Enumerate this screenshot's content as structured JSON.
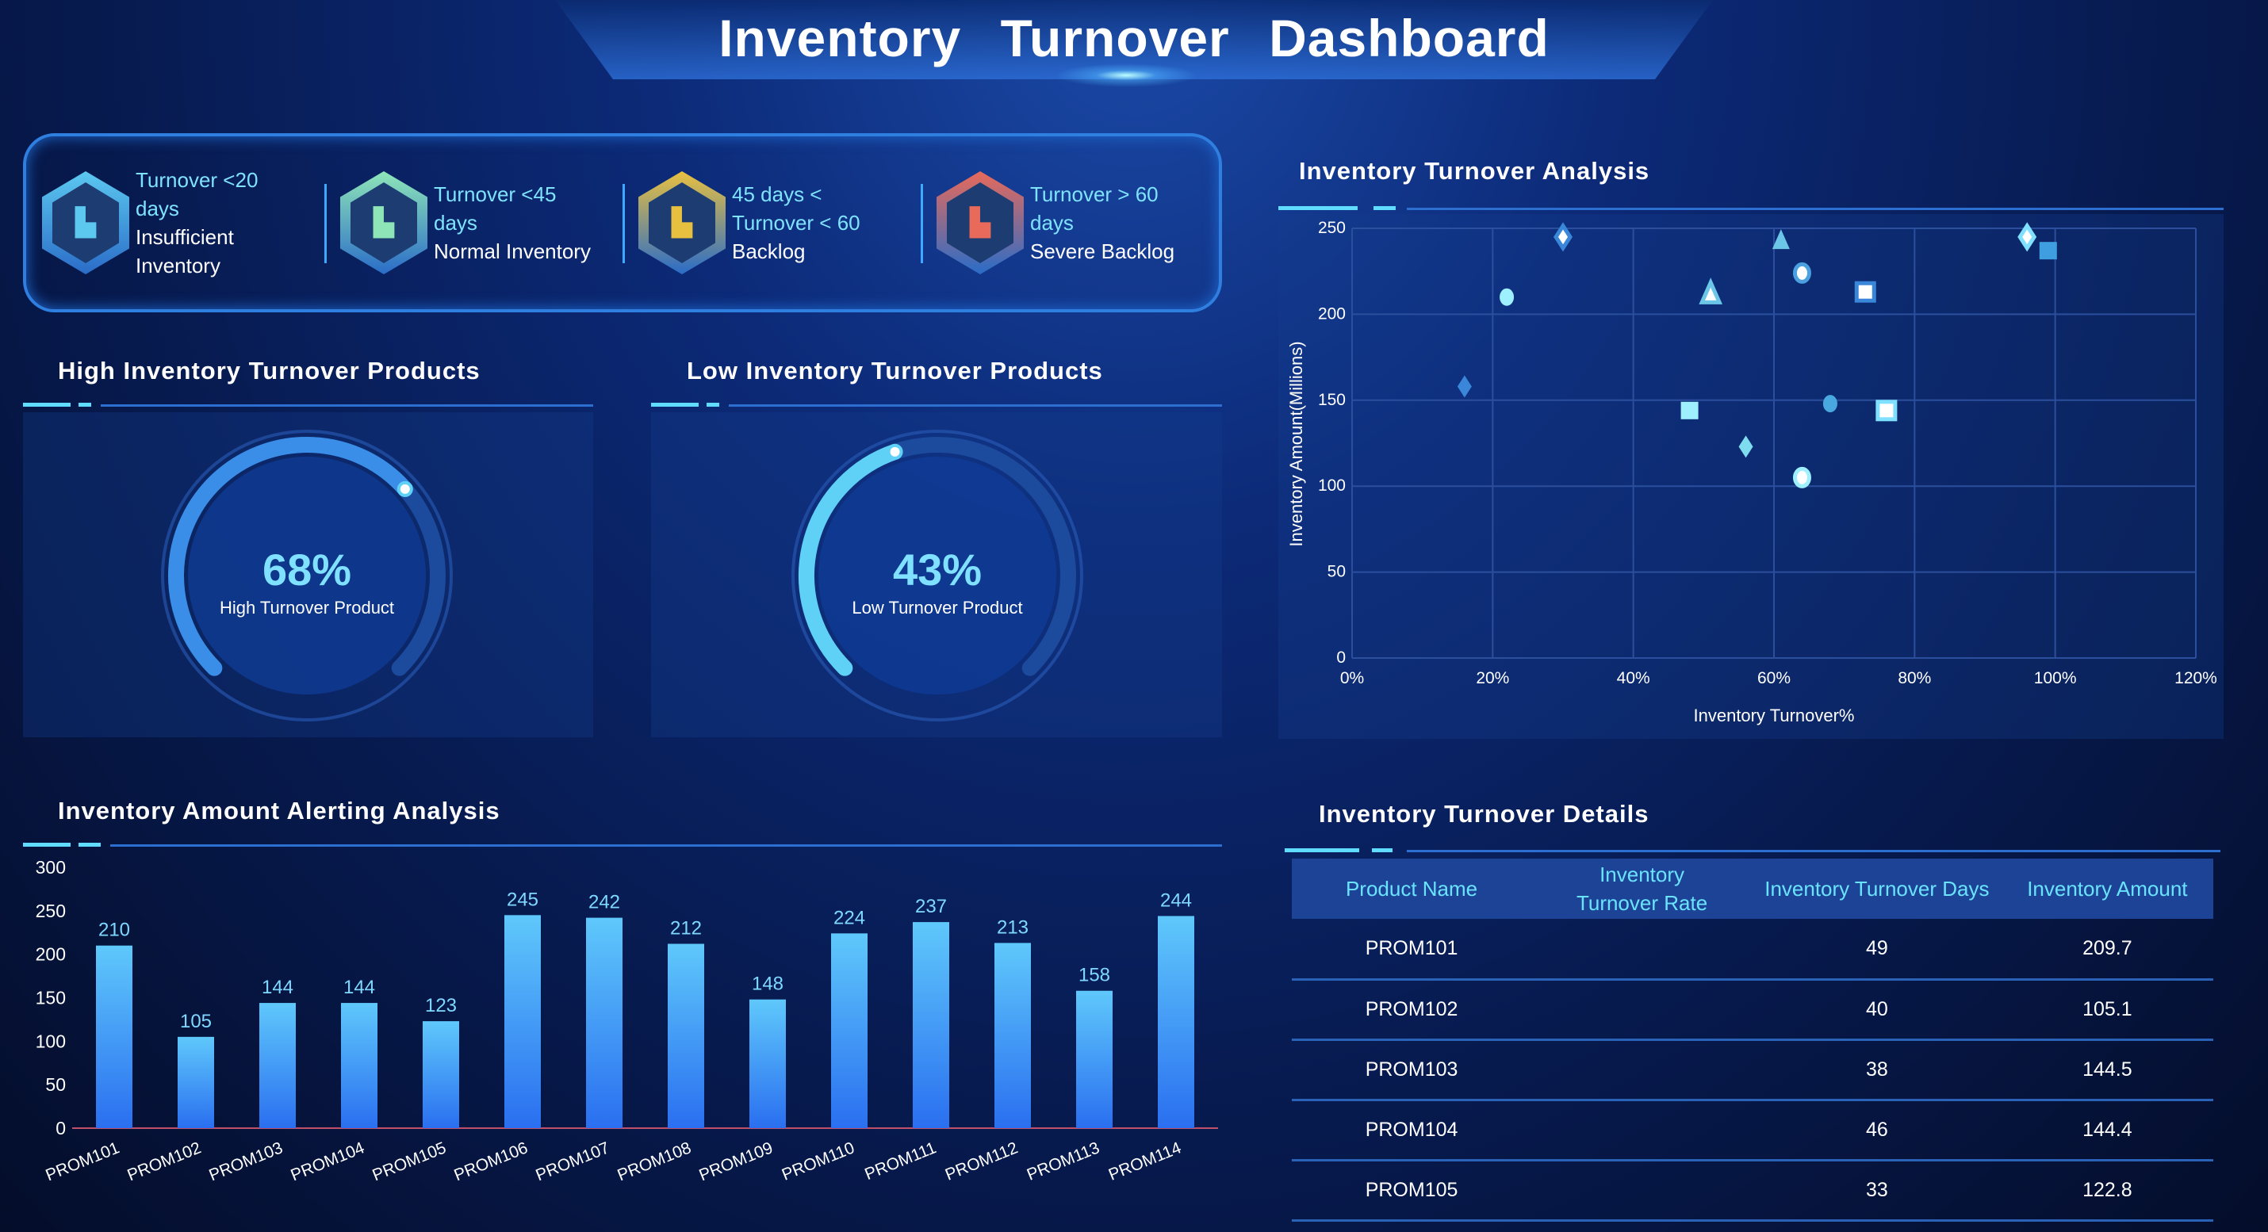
{
  "header": {
    "title": "Inventory Turnover Dashboard"
  },
  "kpis": [
    {
      "line1": "Turnover <20 days",
      "line2": "Insufficient Inventory",
      "color": "#5cc8f0",
      "icon": "bar-chart-icon"
    },
    {
      "line1": "Turnover <45 days",
      "line2": "Normal Inventory",
      "color": "#8ee6b8",
      "icon": "bar-chart-icon"
    },
    {
      "line1": "45 days < Turnover < 60",
      "line2": "Backlog",
      "color": "#e8c040",
      "icon": "bar-chart-icon"
    },
    {
      "line1": "Turnover > 60 days",
      "line2": "Severe Backlog",
      "color": "#e86a5a",
      "icon": "bar-chart-icon"
    }
  ],
  "high": {
    "title": "High Inventory Turnover Products",
    "value": "68%",
    "label": "High Turnover Product",
    "percent": 68
  },
  "low": {
    "title": "Low Inventory Turnover Products",
    "value": "43%",
    "label": "Low Turnover Product",
    "percent": 43
  },
  "chart_data": [
    {
      "type": "scatter",
      "title": "Inventory Turnover Analysis",
      "xlabel": "Inventory Turnover%",
      "ylabel": "Inventory Amount(Millions)",
      "xlim": [
        0,
        120
      ],
      "ylim": [
        0,
        250
      ],
      "xticks": [
        "0%",
        "20%",
        "40%",
        "60%",
        "80%",
        "100%",
        "120%"
      ],
      "yticks": [
        "0",
        "50",
        "100",
        "150",
        "200",
        "250"
      ],
      "grid": true,
      "points": [
        {
          "x": 30,
          "y": 245,
          "shape": "diamond",
          "style": "outlined",
          "color": "#3a86d8"
        },
        {
          "x": 61,
          "y": 243,
          "shape": "triangle",
          "style": "filled",
          "color": "#6cc6e8"
        },
        {
          "x": 64,
          "y": 224,
          "shape": "circle",
          "style": "outlined",
          "color": "#4aa0e0"
        },
        {
          "x": 22,
          "y": 210,
          "shape": "circle",
          "style": "filled",
          "color": "#9ff0ff"
        },
        {
          "x": 51,
          "y": 212,
          "shape": "triangle",
          "style": "outlined",
          "color": "#6cc6e8"
        },
        {
          "x": 73,
          "y": 213,
          "shape": "square",
          "style": "outlined",
          "color": "#3a86d8"
        },
        {
          "x": 96,
          "y": 245,
          "shape": "diamond",
          "style": "outlined",
          "color": "#7fe0ff"
        },
        {
          "x": 99,
          "y": 237,
          "shape": "square",
          "style": "filled",
          "color": "#3f9ee0"
        },
        {
          "x": 16,
          "y": 158,
          "shape": "diamond",
          "style": "filled",
          "color": "#3a86d8"
        },
        {
          "x": 48,
          "y": 144,
          "shape": "square",
          "style": "filled",
          "color": "#9ff0ff"
        },
        {
          "x": 68,
          "y": 148,
          "shape": "circle",
          "style": "filled",
          "color": "#4aa8e0"
        },
        {
          "x": 76,
          "y": 144,
          "shape": "square",
          "style": "outlined",
          "color": "#7fe0ff"
        },
        {
          "x": 56,
          "y": 123,
          "shape": "diamond",
          "style": "filled",
          "color": "#7fdcee"
        },
        {
          "x": 64,
          "y": 105,
          "shape": "circle",
          "style": "outlined",
          "color": "#9ff0ff"
        }
      ]
    },
    {
      "type": "bar",
      "title": "Inventory Amount  Alerting Analysis",
      "ylim": [
        0,
        300
      ],
      "yticks": [
        "0",
        "50",
        "100",
        "150",
        "200",
        "250",
        "300"
      ],
      "categories": [
        "PROM101",
        "PROM102",
        "PROM103",
        "PROM104",
        "PROM105",
        "PROM106",
        "PROM107",
        "PROM108",
        "PROM109",
        "PROM110",
        "PROM111",
        "PROM112",
        "PROM113",
        "PROM114"
      ],
      "values": [
        210,
        105,
        144,
        144,
        123,
        245,
        242,
        212,
        148,
        224,
        237,
        213,
        158,
        244
      ]
    }
  ],
  "table": {
    "title": "Inventory Turnover Details",
    "columns": [
      "Product Name",
      "Inventory Turnover Rate",
      "Inventory Turnover Days",
      "Inventory Amount"
    ],
    "rows": [
      [
        "PROM101",
        "",
        "49",
        "209.7"
      ],
      [
        "PROM102",
        "",
        "40",
        "105.1"
      ],
      [
        "PROM103",
        "",
        "38",
        "144.5"
      ],
      [
        "PROM104",
        "",
        "46",
        "144.4"
      ],
      [
        "PROM105",
        "",
        "33",
        "122.8"
      ]
    ]
  }
}
